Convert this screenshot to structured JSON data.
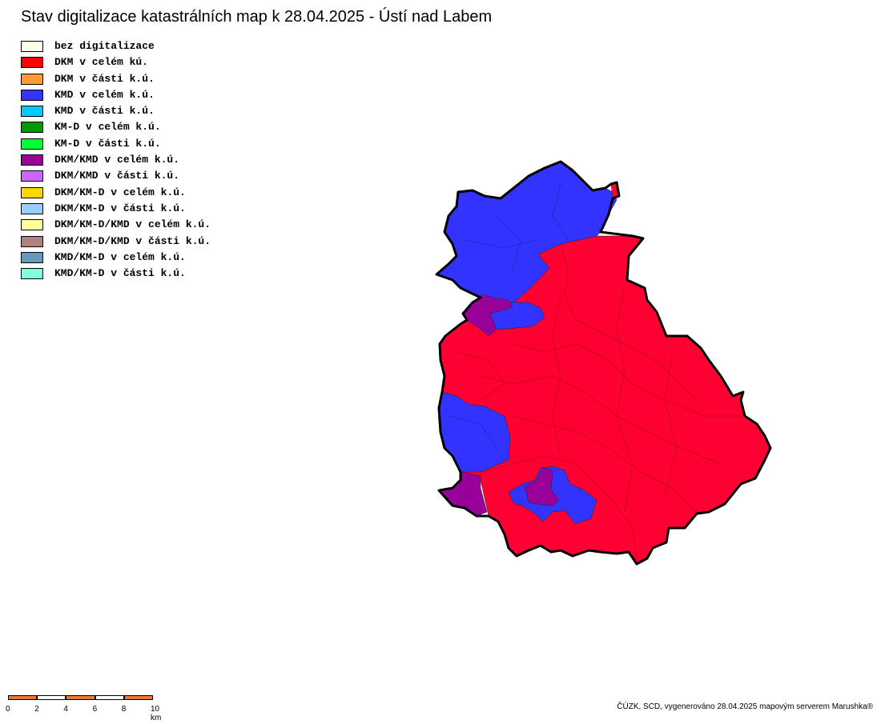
{
  "map": {
    "title": "Stav digitalizace katastrálních map k 28.04.2025 - Ústí nad Labem",
    "legend": [
      {
        "label": "bez digitalizace",
        "color": "#ffffe8"
      },
      {
        "label": "DKM v celém kú.",
        "color": "#ff0000"
      },
      {
        "label": "DKM v části k.ú.",
        "color": "#ff9933"
      },
      {
        "label": "KMD v celém k.ú.",
        "color": "#3333ff"
      },
      {
        "label": "KMD v části k.ú.",
        "color": "#00ccff"
      },
      {
        "label": "KM-D v celém k.ú.",
        "color": "#009900"
      },
      {
        "label": "KM-D v části k.ú.",
        "color": "#00ff33"
      },
      {
        "label": "DKM/KMD v celém k.ú.",
        "color": "#990099"
      },
      {
        "label": "DKM/KMD v části k.ú.",
        "color": "#cc66ff"
      },
      {
        "label": "DKM/KM-D v celém k.ú.",
        "color": "#ffd700"
      },
      {
        "label": "DKM/KM-D v části k.ú.",
        "color": "#99ccff"
      },
      {
        "label": "DKM/KM-D/KMD v celém k.ú.",
        "color": "#ffff99"
      },
      {
        "label": "DKM/KM-D/KMD v části k.ú.",
        "color": "#b38080"
      },
      {
        "label": "KMD/KM-D v celém k.ú.",
        "color": "#6699bb"
      },
      {
        "label": "KMD/KM-D v části k.ú.",
        "color": "#80ffdd"
      }
    ],
    "region_colors": {
      "dkm": "#ff0033",
      "kmd": "#3333ff",
      "dkm_kmd": "#990099",
      "outline": "#000000"
    },
    "scalebar": {
      "ticks": [
        "0",
        "2",
        "4",
        "6",
        "8",
        "10 km"
      ],
      "color_a": "#e07a3a",
      "color_b": "#ffffff"
    },
    "credits": "ČÚZK, SCD, vygenerováno 28.04.2025 mapovým serverem Marushka®"
  }
}
